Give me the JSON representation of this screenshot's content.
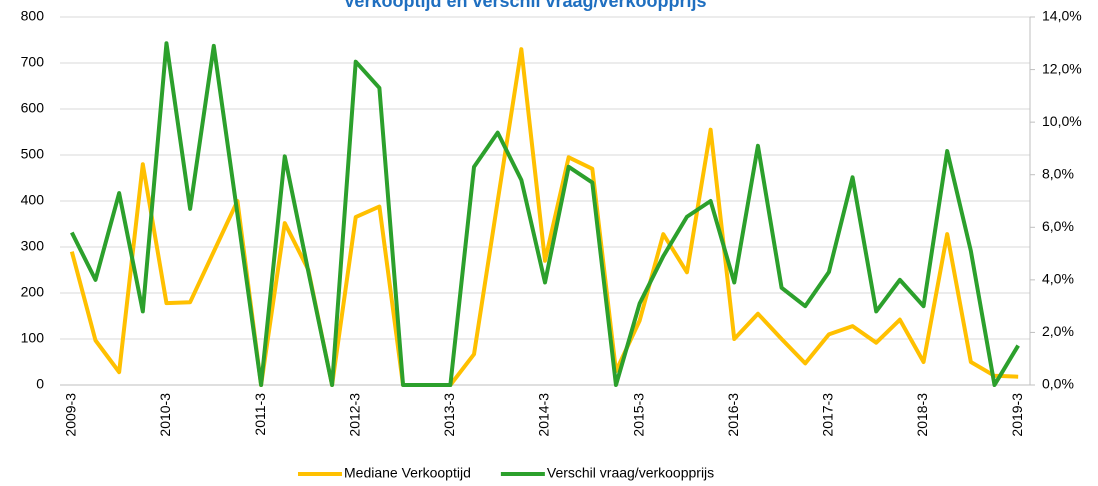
{
  "chart_data": {
    "type": "line",
    "title": "Verkooptijd en verschil vraag/verkoopprijs",
    "categories": [
      "2009-3",
      null,
      null,
      null,
      "2010-3",
      null,
      null,
      null,
      "2011-3",
      null,
      null,
      null,
      "2012-3",
      null,
      null,
      null,
      "2013-3",
      null,
      null,
      null,
      "2014-3",
      null,
      null,
      null,
      "2015-3",
      null,
      null,
      null,
      "2016-3",
      null,
      null,
      null,
      "2017-3",
      null,
      null,
      null,
      "2018-3",
      null,
      null,
      null,
      "2019-3"
    ],
    "series": [
      {
        "name": "Mediane Verkooptijd",
        "color": "#ffc000",
        "values": [
          290,
          97,
          28,
          480,
          178,
          180,
          290,
          400,
          0,
          352,
          250,
          0,
          365,
          388,
          0,
          0,
          0,
          67,
          400,
          730,
          270,
          495,
          470,
          30,
          140,
          328,
          245,
          555,
          100,
          155,
          100,
          47,
          110,
          128,
          92,
          142,
          50,
          328,
          50,
          20,
          18
        ]
      },
      {
        "name": "Verschil vraag/verkoopprijs",
        "color": "#2ca02c",
        "axis": "y2",
        "values": [
          5.8,
          4.0,
          7.3,
          2.8,
          13.0,
          6.7,
          12.9,
          6.5,
          0,
          8.7,
          4.3,
          0,
          12.3,
          11.3,
          0,
          0,
          0,
          8.3,
          9.6,
          7.8,
          3.9,
          8.3,
          7.7,
          0,
          3.1,
          4.9,
          6.4,
          7.0,
          3.9,
          9.1,
          3.7,
          3.0,
          4.3,
          7.9,
          2.8,
          4.0,
          3.0,
          8.9,
          5.1,
          0,
          1.5
        ]
      }
    ],
    "ylim": [
      0,
      800
    ],
    "yticks": [
      0,
      100,
      200,
      300,
      400,
      500,
      600,
      700,
      800
    ],
    "y2lim": [
      0,
      14
    ],
    "y2ticks": [
      {
        "value": 0,
        "label": "0,0%"
      },
      {
        "value": 2,
        "label": "2,0%"
      },
      {
        "value": 4,
        "label": "4,0%"
      },
      {
        "value": 6,
        "label": "6,0%"
      },
      {
        "value": 8,
        "label": "8,0%"
      },
      {
        "value": 10,
        "label": "10,0%"
      },
      {
        "value": 12,
        "label": "12,0%"
      },
      {
        "value": 14,
        "label": "14,0%"
      }
    ],
    "grid": true,
    "legend": "bottom"
  }
}
